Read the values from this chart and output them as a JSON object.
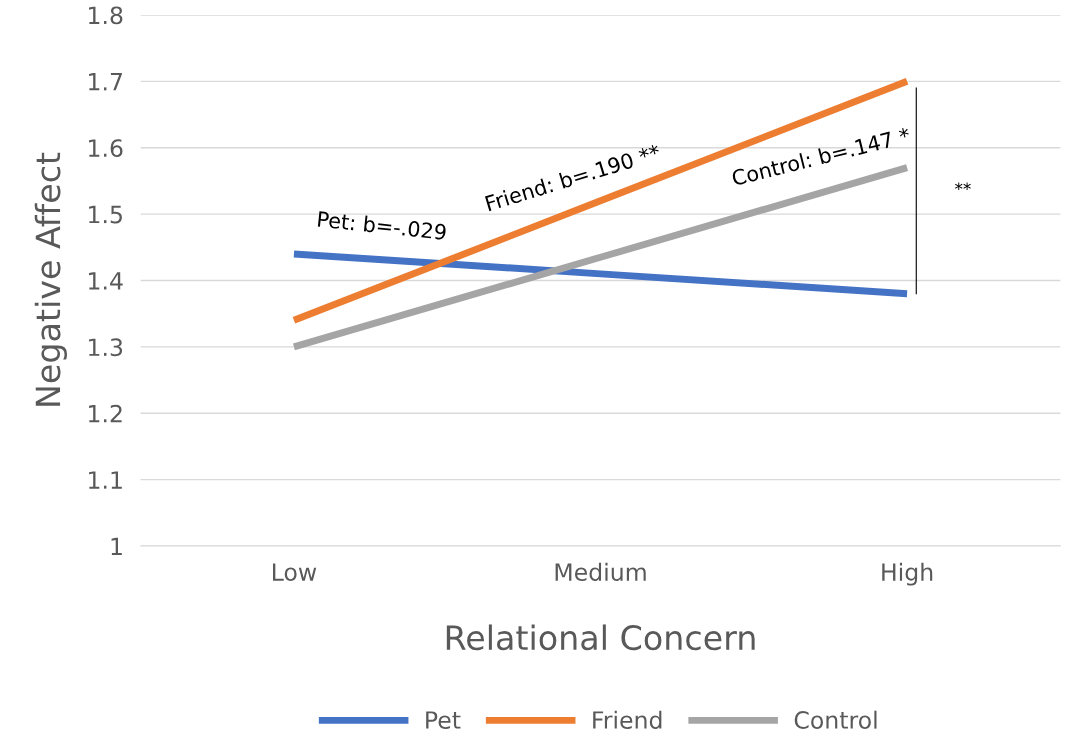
{
  "chart_data": {
    "type": "line",
    "xlabel": "Relational Concern",
    "ylabel": "Negative Affect",
    "categories": [
      "Low",
      "Medium",
      "High"
    ],
    "series": [
      {
        "name": "Pet",
        "color": "#4472c4",
        "values": [
          1.44,
          1.41,
          1.38
        ]
      },
      {
        "name": "Friend",
        "color": "#ed7d31",
        "values": [
          1.34,
          1.52,
          1.7
        ]
      },
      {
        "name": "Control",
        "color": "#a5a5a5",
        "values": [
          1.3,
          1.435,
          1.57
        ]
      }
    ],
    "ylim": [
      1,
      1.8
    ],
    "yticks": [
      1,
      1.1,
      1.2,
      1.3,
      1.4,
      1.5,
      1.6,
      1.7,
      1.8
    ],
    "annotations": [
      "Pet: b=-.029",
      "Friend: b=.190 **",
      "Control: b=.147 *",
      "**"
    ],
    "grid": "y",
    "legend": "bottom",
    "marker": "none",
    "line_style": "solid"
  }
}
